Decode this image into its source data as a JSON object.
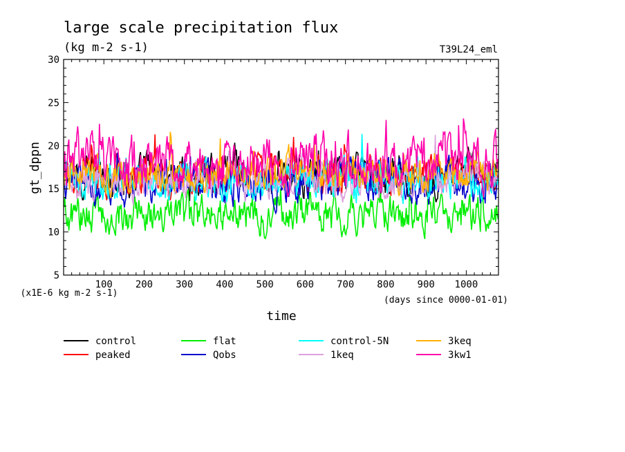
{
  "chart_data": {
    "type": "line",
    "title": "large scale precipitation flux",
    "units": "(kg m-2 s-1)",
    "run_label": "T39L24_eml",
    "ylabel": "gt_dppn",
    "xlabel": "time",
    "x_unit_note": "(days since 0000-01-01)",
    "y_scale_note": "(x1E-6 kg m-2 s-1)",
    "xlim": [
      0,
      1080
    ],
    "ylim": [
      5,
      30
    ],
    "xticks": [
      100,
      200,
      300,
      400,
      500,
      600,
      700,
      800,
      900,
      1000
    ],
    "yticks": [
      5,
      10,
      15,
      20,
      25,
      30
    ],
    "series": [
      {
        "name": "control",
        "color": "#000000",
        "mean": 16.5,
        "amp": 1.4
      },
      {
        "name": "peaked",
        "color": "#ff0000",
        "mean": 16.6,
        "amp": 1.3
      },
      {
        "name": "flat",
        "color": "#00ee00",
        "mean": 12.0,
        "amp": 1.3
      },
      {
        "name": "Qobs",
        "color": "#0000cc",
        "mean": 15.8,
        "amp": 1.5
      },
      {
        "name": "control-5N",
        "color": "#00ffff",
        "mean": 16.0,
        "amp": 1.4
      },
      {
        "name": "1keq",
        "color": "#dda0dd",
        "mean": 16.2,
        "amp": 1.4
      },
      {
        "name": "3keq",
        "color": "#ffb000",
        "mean": 16.8,
        "amp": 1.2
      },
      {
        "name": "3kw1",
        "color": "#ff00aa",
        "mean": 18.2,
        "amp": 1.8
      }
    ]
  }
}
